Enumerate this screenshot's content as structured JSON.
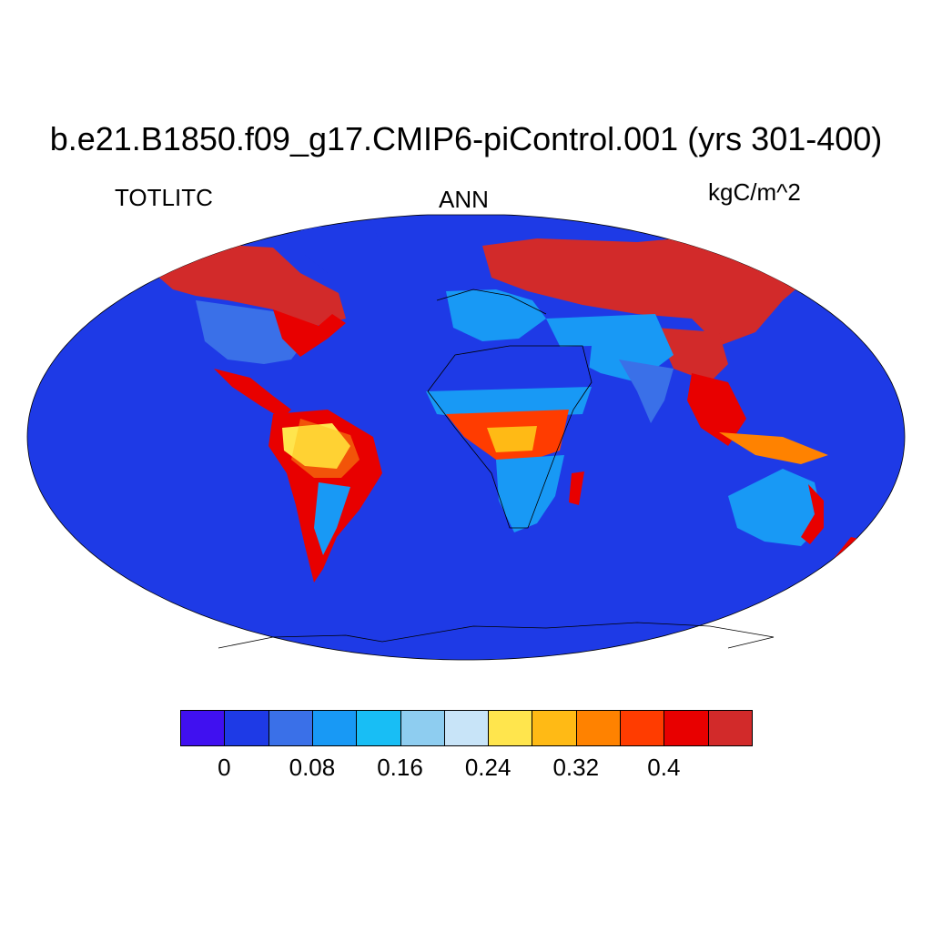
{
  "title": "b.e21.B1850.f09_g17.CMIP6-piControl.001 (yrs 301-400)",
  "left_label": "TOTLITC",
  "center_label": "ANN",
  "right_label": "kgC/m^2",
  "projection": "Robinson",
  "colorbar": {
    "colors": [
      "#4010F0",
      "#1E3AE6",
      "#3A70E8",
      "#1899F5",
      "#18BEF5",
      "#8ECDF0",
      "#C8E4F8",
      "#FFE54D",
      "#FFBA15",
      "#FF8200",
      "#FF3C00",
      "#E80000",
      "#D22A2A"
    ],
    "tick_labels": [
      "0",
      "0.08",
      "0.16",
      "0.24",
      "0.32",
      "0.4"
    ]
  },
  "map_colors": {
    "ocean": "#1E3AE6",
    "coast": "#000000"
  }
}
